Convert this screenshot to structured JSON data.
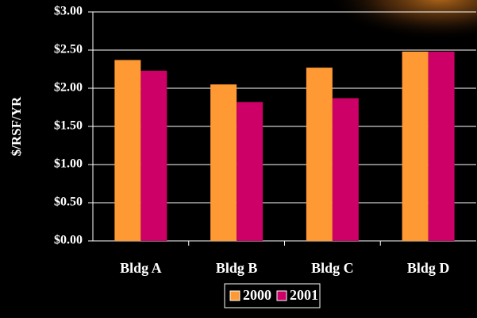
{
  "chart_data": {
    "type": "bar",
    "y_axis_label": "$/RSF/YR",
    "categories": [
      "Bldg A",
      "Bldg B",
      "Bldg C",
      "Bldg D"
    ],
    "series": [
      {
        "name": "2000",
        "color": "#ff9933",
        "values": [
          2.37,
          2.05,
          2.27,
          2.48
        ]
      },
      {
        "name": "2001",
        "color": "#cc0066",
        "values": [
          2.23,
          1.82,
          1.87,
          2.48
        ]
      }
    ],
    "ylim": [
      0,
      3
    ],
    "yticks": [
      {
        "value": 0,
        "label": "$0.00"
      },
      {
        "value": 0.5,
        "label": "$0.50"
      },
      {
        "value": 1,
        "label": "$1.00"
      },
      {
        "value": 1.5,
        "label": "$1.50"
      },
      {
        "value": 2,
        "label": "$2.00"
      },
      {
        "value": 2.5,
        "label": "$2.50"
      },
      {
        "value": 3,
        "label": "$3.00"
      }
    ],
    "grid": true,
    "legend": "bottom"
  }
}
